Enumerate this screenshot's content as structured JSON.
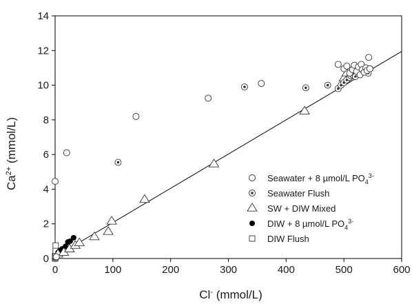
{
  "chart_data": {
    "type": "scatter",
    "xlabel": {
      "base": "Cl",
      "sup": "-",
      "unit": " (mmol/L)"
    },
    "ylabel": {
      "base": "Ca",
      "sup": "2+",
      "unit": " (mmol/L)"
    },
    "xlim": [
      0,
      600
    ],
    "ylim": [
      0,
      14
    ],
    "x_ticks": [
      0,
      100,
      200,
      300,
      400,
      500,
      600
    ],
    "y_ticks": [
      0,
      2,
      4,
      6,
      8,
      10,
      12,
      14
    ],
    "grid": false,
    "legend_position": "lower-right",
    "trend_line": {
      "x": [
        0,
        600
      ],
      "y": [
        0.1,
        11.95
      ]
    },
    "series": [
      {
        "name": "Seawater + 8 µmol/L PO43-",
        "name_parts": {
          "base": "Seawater + 8 µmol/L PO",
          "sub": "4",
          "sup": "3-"
        },
        "marker": "open-circle",
        "points": [
          [
            0,
            4.45
          ],
          [
            2,
            0.1
          ],
          [
            20,
            6.1
          ],
          [
            140,
            8.2
          ],
          [
            265,
            9.25
          ],
          [
            357,
            10.1
          ],
          [
            490,
            11.2
          ],
          [
            500,
            10.95
          ],
          [
            505,
            11.1
          ],
          [
            510,
            10.7
          ],
          [
            515,
            10.9
          ],
          [
            518,
            11.15
          ],
          [
            522,
            10.8
          ],
          [
            525,
            11.05
          ],
          [
            528,
            10.6
          ],
          [
            530,
            11.2
          ],
          [
            532,
            10.9
          ],
          [
            535,
            10.75
          ],
          [
            538,
            11.0
          ],
          [
            540,
            10.85
          ],
          [
            543,
            11.6
          ],
          [
            545,
            10.95
          ]
        ]
      },
      {
        "name": "Seawater Flush",
        "marker": "dotted-circle",
        "points": [
          [
            109,
            5.55
          ],
          [
            328,
            9.9
          ],
          [
            434,
            9.85
          ],
          [
            472,
            10.0
          ],
          [
            490,
            9.8
          ],
          [
            495,
            10.0
          ],
          [
            500,
            10.15
          ],
          [
            505,
            10.3
          ],
          [
            510,
            10.45
          ],
          [
            512,
            10.55
          ],
          [
            515,
            10.6
          ],
          [
            518,
            10.65
          ],
          [
            520,
            10.5
          ],
          [
            525,
            10.75
          ],
          [
            530,
            10.8
          ],
          [
            535,
            10.85
          ],
          [
            538,
            11.0
          ],
          [
            540,
            10.9
          ],
          [
            542,
            10.7
          ],
          [
            545,
            10.95
          ]
        ]
      },
      {
        "name": "SW + DIW Mixed",
        "marker": "open-triangle",
        "points": [
          [
            5,
            0.25
          ],
          [
            15,
            0.35
          ],
          [
            25,
            0.55
          ],
          [
            35,
            0.75
          ],
          [
            42,
            0.9
          ],
          [
            68,
            1.25
          ],
          [
            92,
            1.55
          ],
          [
            98,
            2.15
          ],
          [
            155,
            3.4
          ],
          [
            275,
            5.45
          ],
          [
            432,
            8.5
          ],
          [
            500,
            10.4
          ],
          [
            505,
            10.7
          ]
        ]
      },
      {
        "name": "DIW + 8 µmol/L PO43-",
        "name_parts": {
          "base": "DIW + 8 µmol/L PO",
          "sub": "4",
          "sup": "3-"
        },
        "marker": "filled-circle",
        "points": [
          [
            2,
            0.15
          ],
          [
            5,
            0.35
          ],
          [
            8,
            0.45
          ],
          [
            12,
            0.55
          ],
          [
            18,
            0.7
          ],
          [
            22,
            0.95
          ],
          [
            26,
            1.0
          ],
          [
            32,
            1.2
          ]
        ]
      },
      {
        "name": "DIW Flush",
        "marker": "open-square",
        "points": [
          [
            0,
            0.0
          ],
          [
            0,
            0.05
          ],
          [
            1,
            0.1
          ],
          [
            0,
            0.15
          ],
          [
            1,
            0.3
          ],
          [
            1,
            0.45
          ],
          [
            1,
            0.75
          ]
        ]
      }
    ]
  }
}
